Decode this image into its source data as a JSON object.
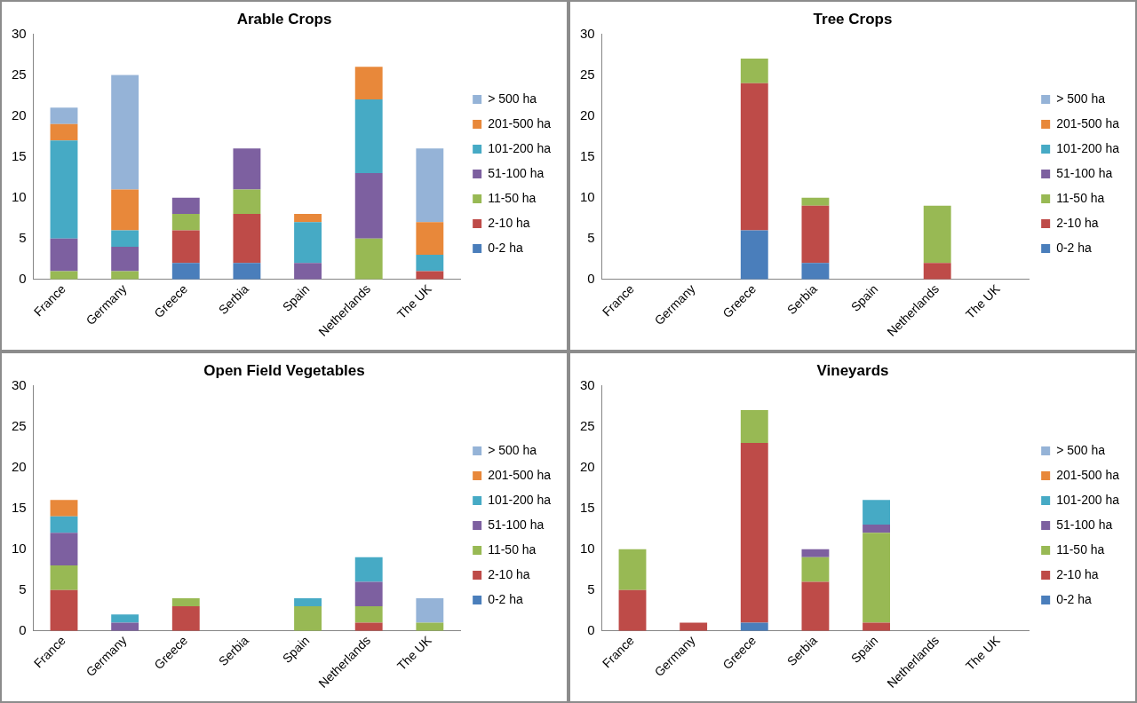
{
  "chart_data": [
    {
      "type": "bar",
      "title": "Arable Crops",
      "stacked": true,
      "legend": "right",
      "grid": false,
      "ylim": [
        0,
        30
      ],
      "yticks": [
        0,
        5,
        10,
        15,
        20,
        25,
        30
      ],
      "categories": [
        "France",
        "Germany",
        "Greece",
        "Serbia",
        "Spain",
        "Netherlands",
        "The UK"
      ],
      "series": [
        {
          "name": "0-2 ha",
          "color": "#4a7ebb",
          "values": [
            0,
            0,
            2,
            2,
            0,
            0,
            0
          ]
        },
        {
          "name": "2-10 ha",
          "color": "#be4b48",
          "values": [
            0,
            0,
            4,
            6,
            0,
            0,
            1
          ]
        },
        {
          "name": "11-50 ha",
          "color": "#98b954",
          "values": [
            1,
            1,
            2,
            3,
            0,
            5,
            0
          ]
        },
        {
          "name": "51-100 ha",
          "color": "#7d60a0",
          "values": [
            4,
            3,
            2,
            5,
            2,
            8,
            0
          ]
        },
        {
          "name": "101-200 ha",
          "color": "#46aac5",
          "values": [
            12,
            2,
            0,
            0,
            5,
            9,
            2
          ]
        },
        {
          "name": "201-500 ha",
          "color": "#e8883a",
          "values": [
            2,
            5,
            0,
            0,
            1,
            4,
            4
          ]
        },
        {
          "name": "> 500 ha",
          "color": "#95b3d7",
          "values": [
            2,
            14,
            0,
            0,
            0,
            0,
            9
          ]
        }
      ]
    },
    {
      "type": "bar",
      "title": "Tree Crops",
      "stacked": true,
      "legend": "right",
      "grid": false,
      "ylim": [
        0,
        30
      ],
      "yticks": [
        0,
        5,
        10,
        15,
        20,
        25,
        30
      ],
      "categories": [
        "France",
        "Germany",
        "Greece",
        "Serbia",
        "Spain",
        "Netherlands",
        "The UK"
      ],
      "series": [
        {
          "name": "0-2 ha",
          "color": "#4a7ebb",
          "values": [
            0,
            0,
            6,
            2,
            0,
            0,
            0
          ]
        },
        {
          "name": "2-10 ha",
          "color": "#be4b48",
          "values": [
            0,
            0,
            18,
            7,
            0,
            2,
            0
          ]
        },
        {
          "name": "11-50 ha",
          "color": "#98b954",
          "values": [
            0,
            0,
            3,
            1,
            0,
            7,
            0
          ]
        },
        {
          "name": "51-100 ha",
          "color": "#7d60a0",
          "values": [
            0,
            0,
            0,
            0,
            0,
            0,
            0
          ]
        },
        {
          "name": "101-200 ha",
          "color": "#46aac5",
          "values": [
            0,
            0,
            0,
            0,
            0,
            0,
            0
          ]
        },
        {
          "name": "201-500 ha",
          "color": "#e8883a",
          "values": [
            0,
            0,
            0,
            0,
            0,
            0,
            0
          ]
        },
        {
          "name": "> 500 ha",
          "color": "#95b3d7",
          "values": [
            0,
            0,
            0,
            0,
            0,
            0,
            0
          ]
        }
      ]
    },
    {
      "type": "bar",
      "title": "Open Field Vegetables",
      "stacked": true,
      "legend": "right",
      "grid": false,
      "ylim": [
        0,
        30
      ],
      "yticks": [
        0,
        5,
        10,
        15,
        20,
        25,
        30
      ],
      "categories": [
        "France",
        "Germany",
        "Greece",
        "Serbia",
        "Spain",
        "Netherlands",
        "The UK"
      ],
      "series": [
        {
          "name": "0-2 ha",
          "color": "#4a7ebb",
          "values": [
            0,
            0,
            0,
            0,
            0,
            0,
            0
          ]
        },
        {
          "name": "2-10 ha",
          "color": "#be4b48",
          "values": [
            5,
            0,
            3,
            0,
            0,
            1,
            0
          ]
        },
        {
          "name": "11-50 ha",
          "color": "#98b954",
          "values": [
            3,
            0,
            1,
            0,
            3,
            2,
            1
          ]
        },
        {
          "name": "51-100 ha",
          "color": "#7d60a0",
          "values": [
            4,
            1,
            0,
            0,
            0,
            3,
            0
          ]
        },
        {
          "name": "101-200 ha",
          "color": "#46aac5",
          "values": [
            2,
            1,
            0,
            0,
            1,
            3,
            0
          ]
        },
        {
          "name": "201-500 ha",
          "color": "#e8883a",
          "values": [
            2,
            0,
            0,
            0,
            0,
            0,
            0
          ]
        },
        {
          "name": "> 500 ha",
          "color": "#95b3d7",
          "values": [
            0,
            0,
            0,
            0,
            0,
            0,
            3
          ]
        }
      ]
    },
    {
      "type": "bar",
      "title": "Vineyards",
      "stacked": true,
      "legend": "right",
      "grid": false,
      "ylim": [
        0,
        30
      ],
      "yticks": [
        0,
        5,
        10,
        15,
        20,
        25,
        30
      ],
      "categories": [
        "France",
        "Germany",
        "Greece",
        "Serbia",
        "Spain",
        "Netherlands",
        "The UK"
      ],
      "series": [
        {
          "name": "0-2 ha",
          "color": "#4a7ebb",
          "values": [
            0,
            0,
            1,
            0,
            0,
            0,
            0
          ]
        },
        {
          "name": "2-10 ha",
          "color": "#be4b48",
          "values": [
            5,
            1,
            22,
            6,
            1,
            0,
            0
          ]
        },
        {
          "name": "11-50 ha",
          "color": "#98b954",
          "values": [
            5,
            0,
            4,
            3,
            11,
            0,
            0
          ]
        },
        {
          "name": "51-100 ha",
          "color": "#7d60a0",
          "values": [
            0,
            0,
            0,
            1,
            1,
            0,
            0
          ]
        },
        {
          "name": "101-200 ha",
          "color": "#46aac5",
          "values": [
            0,
            0,
            0,
            0,
            3,
            0,
            0
          ]
        },
        {
          "name": "201-500 ha",
          "color": "#e8883a",
          "values": [
            0,
            0,
            0,
            0,
            0,
            0,
            0
          ]
        },
        {
          "name": "> 500 ha",
          "color": "#95b3d7",
          "values": [
            0,
            0,
            0,
            0,
            0,
            0,
            0
          ]
        }
      ]
    }
  ]
}
